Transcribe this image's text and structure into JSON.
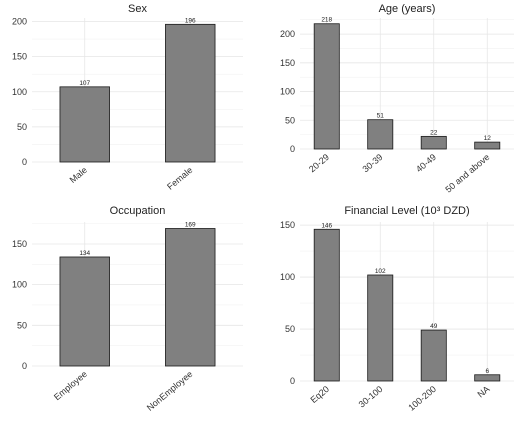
{
  "chart_data": [
    {
      "type": "bar",
      "title": "Sex",
      "categories": [
        "Male",
        "Female"
      ],
      "values": [
        107,
        196
      ],
      "ylim": [
        0,
        205
      ],
      "yticks": [
        0,
        50,
        100,
        150,
        200
      ],
      "grid": true
    },
    {
      "type": "bar",
      "title": "Age (years)",
      "categories": [
        "20-29",
        "30-39",
        "40-49",
        "50 and above"
      ],
      "values": [
        218,
        51,
        22,
        12
      ],
      "ylim": [
        0,
        228
      ],
      "yticks": [
        0,
        50,
        100,
        150,
        200
      ],
      "grid": true
    },
    {
      "type": "bar",
      "title": "Occupation",
      "categories": [
        "Employee",
        "NonEmployee"
      ],
      "values": [
        134,
        169
      ],
      "ylim": [
        0,
        177
      ],
      "yticks": [
        0,
        50,
        100,
        150
      ],
      "grid": true
    },
    {
      "type": "bar",
      "title": "Financial Level (10³ DZD)",
      "categories": [
        "Eq20",
        "30-100",
        "100-200",
        "NA"
      ],
      "values": [
        146,
        102,
        49,
        6
      ],
      "ylim": [
        0,
        153
      ],
      "yticks": [
        0,
        50,
        100,
        150
      ],
      "grid": true
    }
  ]
}
